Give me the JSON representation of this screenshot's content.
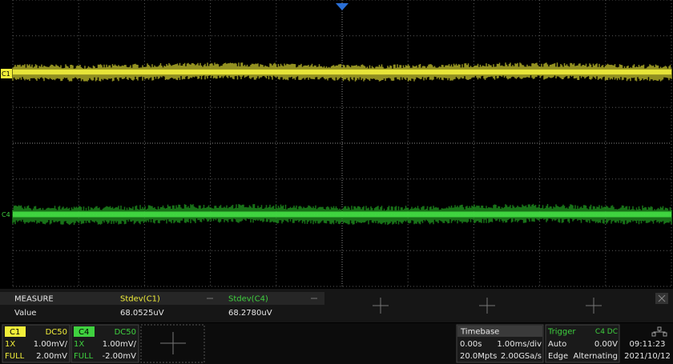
{
  "waveform": {
    "channel_labels": [
      "C1",
      "C4"
    ]
  },
  "measure": {
    "title": "MEASURE",
    "row_label": "Value",
    "items": [
      {
        "name": "Stdev(C1)",
        "value": "68.0525uV"
      },
      {
        "name": "Stdev(C4)",
        "value": "68.2780uV"
      }
    ]
  },
  "channels": [
    {
      "name": "C1",
      "coupling": "DC50",
      "probe": "1X",
      "scale": "1.00mV/",
      "bandwidth": "FULL",
      "offset": "2.00mV"
    },
    {
      "name": "C4",
      "coupling": "DC50",
      "probe": "1X",
      "scale": "1.00mV/",
      "bandwidth": "FULL",
      "offset": "-2.00mV"
    }
  ],
  "timebase": {
    "title": "Timebase",
    "delay": "0.00s",
    "scale": "1.00ms/div",
    "memory": "20.0Mpts",
    "sample_rate": "2.00GSa/s"
  },
  "trigger": {
    "title": "Trigger",
    "source": "C4 DC",
    "mode": "Auto",
    "level": "0.00V",
    "type": "Edge",
    "slope": "Alternating"
  },
  "clock": {
    "time": "09:11:23",
    "date": "2021/10/12"
  }
}
